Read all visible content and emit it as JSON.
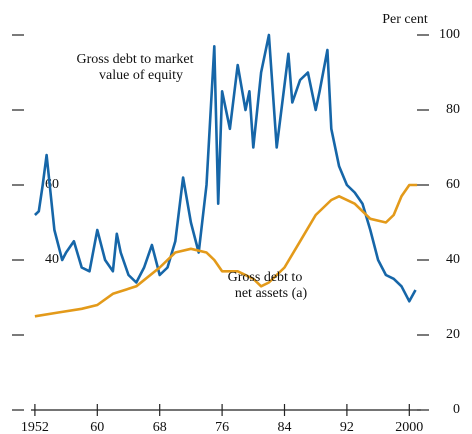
{
  "chart_data": {
    "type": "line",
    "y2_label": "Per cent",
    "xlim": [
      1951.5,
      2001.5
    ],
    "xticks": [
      {
        "value": 1952,
        "label": "1952"
      },
      {
        "value": 1960,
        "label": "60"
      },
      {
        "value": 1968,
        "label": "68"
      },
      {
        "value": 1976,
        "label": "76"
      },
      {
        "value": 1984,
        "label": "84"
      },
      {
        "value": 1992,
        "label": "92"
      },
      {
        "value": 2000,
        "label": "2000"
      }
    ],
    "ylim": [
      0,
      100
    ],
    "yticks": [
      60,
      40
    ],
    "y2lim": [
      0,
      100
    ],
    "y2ticks": [
      100,
      80,
      60,
      40,
      20,
      0
    ],
    "series": [
      {
        "name": "Gross debt to market value of equity",
        "color": "#1666a8",
        "x": [
          1952,
          1952.5,
          1953,
          1953.5,
          1954,
          1954.5,
          1955,
          1955.5,
          1956,
          1957,
          1958,
          1959,
          1960,
          1961,
          1962,
          1962.5,
          1963,
          1964,
          1965,
          1966,
          1967,
          1968,
          1969,
          1970,
          1971,
          1972,
          1973,
          1974,
          1975,
          1975.5,
          1976,
          1977,
          1978,
          1979,
          1979.5,
          1980,
          1981,
          1982,
          1983,
          1984.5,
          1985,
          1986,
          1987,
          1988,
          1988.5,
          1989.5,
          1990,
          1991,
          1992,
          1993,
          1994,
          1995,
          1996,
          1997,
          1998,
          1999,
          2000,
          2000.8
        ],
        "values": [
          52,
          53,
          60,
          68,
          58,
          48,
          44,
          40,
          42,
          45,
          38,
          37,
          48,
          40,
          37,
          47,
          42,
          36,
          34,
          38,
          44,
          36,
          38,
          45,
          62,
          50,
          42,
          60,
          97,
          55,
          85,
          75,
          92,
          80,
          85,
          70,
          90,
          100,
          70,
          95,
          82,
          88,
          90,
          80,
          85,
          96,
          75,
          65,
          60,
          58,
          55,
          48,
          40,
          36,
          35,
          33,
          29,
          32
        ],
        "label_lines": [
          "Gross debt to market",
          "value of equity"
        ]
      },
      {
        "name": "Gross debt to net assets (a)",
        "color": "#e39a1a",
        "x": [
          1952,
          1955,
          1958,
          1960,
          1962,
          1965,
          1968,
          1970,
          1972,
          1974,
          1975,
          1976,
          1978,
          1980,
          1981,
          1982,
          1984,
          1986,
          1988,
          1990,
          1991,
          1993,
          1995,
          1997,
          1998,
          1999,
          2000,
          2001
        ],
        "values": [
          25,
          26,
          27,
          28,
          31,
          33,
          38,
          42,
          43,
          42,
          40,
          37,
          37,
          35,
          33,
          34,
          38,
          45,
          52,
          56,
          57,
          55,
          51,
          50,
          52,
          57,
          60,
          60
        ],
        "label_lines": [
          "Gross debt to",
          "net assets (a)"
        ]
      }
    ]
  }
}
